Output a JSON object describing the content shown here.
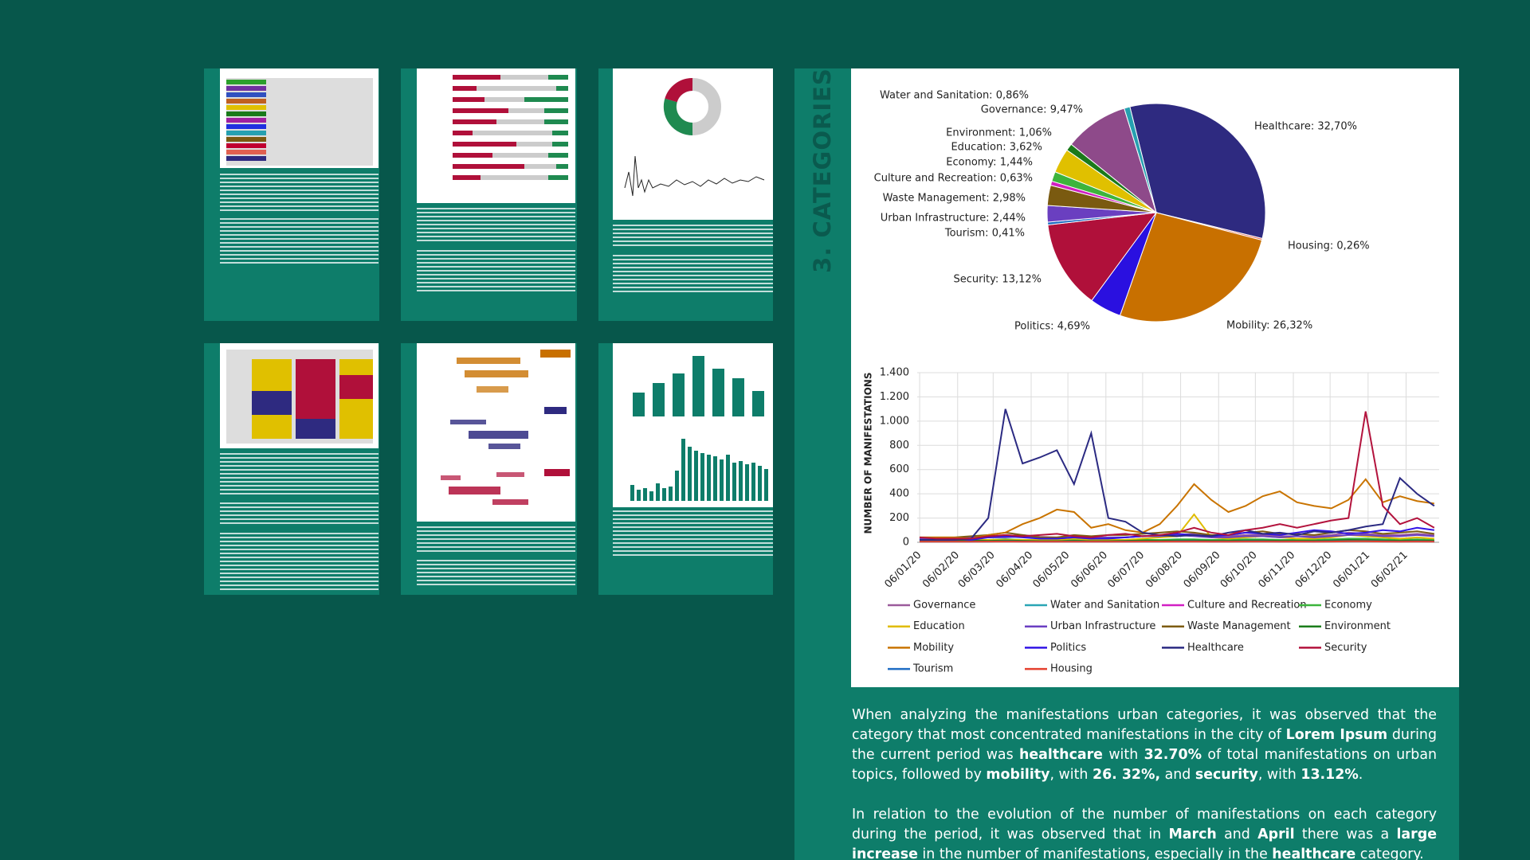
{
  "sidebar": {
    "title": "3. CATEGORIES"
  },
  "chart_data": [
    {
      "type": "pie",
      "values": [
        32.7,
        0.26,
        26.32,
        4.69,
        13.12,
        0.41,
        2.44,
        2.98,
        0.63,
        1.44,
        3.62,
        1.06,
        9.47,
        0.86
      ],
      "value_labels": [
        "Healthcare: 32,70%",
        "Housing: 0,26%",
        "Mobility: 26,32%",
        "Politics: 4,69%",
        "Security: 13,12%",
        "Tourism: 0,41%",
        "Urban Infrastructure: 2,44%",
        "Waste Management: 2,98%",
        "Culture and Recreation: 0,63%",
        "Economy: 1,44%",
        "Education: 3,62%",
        "Environment: 1,06%",
        "Governance: 9,47%",
        "Water and Sanitation: 0,86%"
      ],
      "colors": [
        "#2e2a80",
        "#e06050",
        "#c87000",
        "#2a10e0",
        "#b0103a",
        "#1a6ac0",
        "#6a3fc0",
        "#7a5a10",
        "#d020c0",
        "#3cb43c",
        "#e0c000",
        "#1a7a1a",
        "#8e4a8a",
        "#26a0b0"
      ]
    },
    {
      "type": "line",
      "y_label": "NUMBER OF MANIFESTATIONS",
      "x": [
        0,
        14,
        28,
        42,
        56,
        70,
        84,
        98,
        112,
        126,
        140,
        154,
        168,
        182,
        196,
        210,
        224,
        238,
        252,
        266,
        280,
        294,
        308,
        322,
        336,
        350,
        364,
        378,
        392,
        406,
        420
      ],
      "xlim": [
        -2,
        424
      ],
      "xticks": [
        {
          "value": 0,
          "label": "06/01/20"
        },
        {
          "value": 31,
          "label": "06/02/20"
        },
        {
          "value": 60,
          "label": "06/03/20"
        },
        {
          "value": 91,
          "label": "06/04/20"
        },
        {
          "value": 121,
          "label": "06/05/20"
        },
        {
          "value": 152,
          "label": "06/06/20"
        },
        {
          "value": 182,
          "label": "06/07/20"
        },
        {
          "value": 213,
          "label": "06/08/20"
        },
        {
          "value": 244,
          "label": "06/09/20"
        },
        {
          "value": 274,
          "label": "06/10/20"
        },
        {
          "value": 305,
          "label": "06/11/20"
        },
        {
          "value": 335,
          "label": "06/12/20"
        },
        {
          "value": 366,
          "label": "06/01/21"
        },
        {
          "value": 397,
          "label": "06/02/21"
        }
      ],
      "ylim": [
        0,
        1400
      ],
      "yticks": [
        0,
        200,
        400,
        600,
        800,
        {
          "value": 1000,
          "label": "1.000"
        },
        {
          "value": 1200,
          "label": "1.200"
        },
        {
          "value": 1400,
          "label": "1.400"
        }
      ],
      "grid": true,
      "series": [
        {
          "name": "Governance",
          "color": "#9b5a9b",
          "values": [
            30,
            30,
            35,
            40,
            40,
            50,
            60,
            45,
            40,
            50,
            40,
            40,
            40,
            50,
            60,
            60,
            70,
            50,
            50,
            60,
            60,
            50,
            50,
            50,
            60,
            80,
            70,
            60,
            60,
            70,
            60
          ]
        },
        {
          "name": "Water and Sanitation",
          "color": "#2aa5b5",
          "values": [
            5,
            5,
            5,
            5,
            10,
            10,
            8,
            6,
            5,
            6,
            5,
            5,
            5,
            6,
            6,
            8,
            10,
            6,
            5,
            6,
            6,
            5,
            6,
            5,
            6,
            8,
            10,
            6,
            5,
            6,
            5
          ]
        },
        {
          "name": "Culture and Recreation",
          "color": "#d21fc4",
          "values": [
            10,
            10,
            10,
            12,
            10,
            15,
            10,
            8,
            8,
            10,
            8,
            8,
            10,
            12,
            10,
            12,
            15,
            10,
            10,
            12,
            10,
            10,
            12,
            10,
            12,
            15,
            14,
            12,
            10,
            12,
            10
          ]
        },
        {
          "name": "Economy",
          "color": "#3cb43c",
          "values": [
            15,
            15,
            15,
            20,
            20,
            25,
            20,
            15,
            15,
            20,
            15,
            15,
            20,
            20,
            20,
            25,
            25,
            20,
            20,
            25,
            25,
            20,
            20,
            20,
            25,
            30,
            30,
            25,
            20,
            25,
            20
          ]
        },
        {
          "name": "Education",
          "color": "#e0bc00",
          "values": [
            10,
            10,
            20,
            20,
            20,
            20,
            20,
            20,
            20,
            30,
            20,
            20,
            20,
            30,
            40,
            50,
            230,
            40,
            30,
            40,
            50,
            40,
            30,
            30,
            40,
            60,
            50,
            40,
            30,
            40,
            30
          ]
        },
        {
          "name": "Urban Infrastructure",
          "color": "#6b3fc2",
          "values": [
            30,
            30,
            30,
            35,
            40,
            40,
            50,
            30,
            30,
            40,
            30,
            40,
            40,
            50,
            50,
            60,
            50,
            40,
            40,
            50,
            50,
            40,
            50,
            40,
            50,
            60,
            60,
            50,
            50,
            60,
            50
          ]
        },
        {
          "name": "Waste Management",
          "color": "#7d5c12",
          "values": [
            40,
            40,
            40,
            50,
            60,
            80,
            60,
            40,
            40,
            60,
            50,
            60,
            60,
            70,
            80,
            90,
            80,
            60,
            60,
            80,
            90,
            70,
            70,
            60,
            80,
            100,
            90,
            70,
            80,
            90,
            70
          ]
        },
        {
          "name": "Environment",
          "color": "#1b7d1b",
          "values": [
            10,
            10,
            12,
            15,
            12,
            15,
            12,
            10,
            10,
            12,
            10,
            10,
            12,
            15,
            12,
            15,
            15,
            12,
            12,
            15,
            15,
            12,
            12,
            12,
            15,
            20,
            18,
            15,
            12,
            15,
            12
          ]
        },
        {
          "name": "Mobility",
          "color": "#c97400",
          "values": [
            40,
            40,
            40,
            30,
            60,
            80,
            150,
            200,
            270,
            250,
            120,
            150,
            100,
            80,
            150,
            300,
            480,
            350,
            250,
            300,
            380,
            420,
            330,
            300,
            280,
            350,
            520,
            330,
            380,
            340,
            320
          ]
        },
        {
          "name": "Politics",
          "color": "#3214e6",
          "values": [
            20,
            20,
            30,
            20,
            40,
            50,
            40,
            30,
            30,
            40,
            30,
            30,
            40,
            50,
            60,
            70,
            60,
            50,
            60,
            80,
            70,
            60,
            80,
            100,
            90,
            70,
            80,
            100,
            90,
            120,
            100
          ]
        },
        {
          "name": "Healthcare",
          "color": "#2b2a82",
          "values": [
            20,
            20,
            20,
            30,
            200,
            1100,
            650,
            700,
            760,
            480,
            900,
            200,
            170,
            80,
            60,
            50,
            60,
            50,
            80,
            100,
            70,
            80,
            60,
            90,
            80,
            100,
            130,
            150,
            530,
            400,
            300
          ]
        },
        {
          "name": "Security",
          "color": "#b3133d",
          "values": [
            40,
            30,
            30,
            30,
            50,
            60,
            50,
            60,
            70,
            50,
            40,
            60,
            70,
            50,
            60,
            80,
            120,
            80,
            60,
            100,
            120,
            150,
            120,
            150,
            180,
            200,
            1080,
            300,
            150,
            200,
            120
          ]
        },
        {
          "name": "Tourism",
          "color": "#1f6dc4",
          "values": [
            5,
            5,
            5,
            5,
            5,
            8,
            6,
            5,
            5,
            6,
            5,
            5,
            6,
            6,
            6,
            8,
            8,
            6,
            6,
            8,
            8,
            6,
            6,
            6,
            8,
            10,
            10,
            8,
            6,
            8,
            6
          ]
        },
        {
          "name": "Housing",
          "color": "#e5412f",
          "values": [
            5,
            5,
            5,
            5,
            6,
            6,
            5,
            5,
            5,
            5,
            5,
            5,
            5,
            6,
            6,
            6,
            6,
            5,
            5,
            6,
            6,
            5,
            6,
            5,
            6,
            8,
            8,
            6,
            5,
            6,
            5
          ]
        }
      ]
    }
  ],
  "text": {
    "paragraphs": [
      {
        "runs": [
          {
            "text": "When analyzing the manifestations urban categories, it was observed that the category that most concentrated manifestations in the city of ",
            "bold": false
          },
          {
            "text": "Lorem Ipsum",
            "bold": true
          },
          {
            "text": " during the current period was ",
            "bold": false
          },
          {
            "text": "healthcare",
            "bold": true
          },
          {
            "text": " with ",
            "bold": false
          },
          {
            "text": "32.70%",
            "bold": true
          },
          {
            "text": " of total manifestations on urban topics, followed by ",
            "bold": false
          },
          {
            "text": "mobility",
            "bold": true
          },
          {
            "text": ", with ",
            "bold": false
          },
          {
            "text": "26. 32%,",
            "bold": true
          },
          {
            "text": " and ",
            "bold": false
          },
          {
            "text": "security",
            "bold": true
          },
          {
            "text": ", with ",
            "bold": false
          },
          {
            "text": "13.12%",
            "bold": true
          },
          {
            "text": ".",
            "bold": false
          }
        ]
      },
      {
        "runs": [
          {
            "text": "In relation to the evolution of the number of manifestations on each category during the period, it was observed that in ",
            "bold": false
          },
          {
            "text": "March",
            "bold": true
          },
          {
            "text": " and ",
            "bold": false
          },
          {
            "text": "April",
            "bold": true
          },
          {
            "text": " there was a ",
            "bold": false
          },
          {
            "text": "large increase",
            "bold": true
          },
          {
            "text": " in the number of manifestations, especially in the ",
            "bold": false
          },
          {
            "text": "healthcare",
            "bold": true
          },
          {
            "text": " category.",
            "bold": false
          }
        ]
      }
    ]
  }
}
